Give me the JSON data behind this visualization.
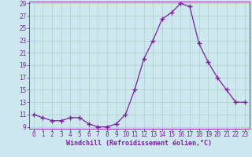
{
  "x": [
    0,
    1,
    2,
    3,
    4,
    5,
    6,
    7,
    8,
    9,
    10,
    11,
    12,
    13,
    14,
    15,
    16,
    17,
    18,
    19,
    20,
    21,
    22,
    23
  ],
  "y": [
    11,
    10.5,
    10,
    10,
    10.5,
    10.5,
    9.5,
    9,
    9,
    9.5,
    11,
    15,
    20,
    23,
    26.5,
    27.5,
    29,
    28.5,
    22.5,
    19.5,
    17,
    15,
    13,
    13
  ],
  "line_color": "#7b1fa2",
  "marker": "+",
  "bg_color": "#cce8ee",
  "grid_color": "#b0cccc",
  "xlabel": "Windchill (Refroidissement éolien,°C)",
  "ylim": [
    9,
    29
  ],
  "xlim": [
    -0.5,
    23.5
  ],
  "yticks": [
    9,
    11,
    13,
    15,
    17,
    19,
    21,
    23,
    25,
    27,
    29
  ],
  "xticks": [
    0,
    1,
    2,
    3,
    4,
    5,
    6,
    7,
    8,
    9,
    10,
    11,
    12,
    13,
    14,
    15,
    16,
    17,
    18,
    19,
    20,
    21,
    22,
    23
  ],
  "xlabel_color": "#7b1fa2",
  "tick_color": "#7b1fa2",
  "font": "monospace",
  "tick_fontsize": 5.5,
  "xlabel_fontsize": 6.0,
  "linewidth": 0.9,
  "markersize": 4.0
}
